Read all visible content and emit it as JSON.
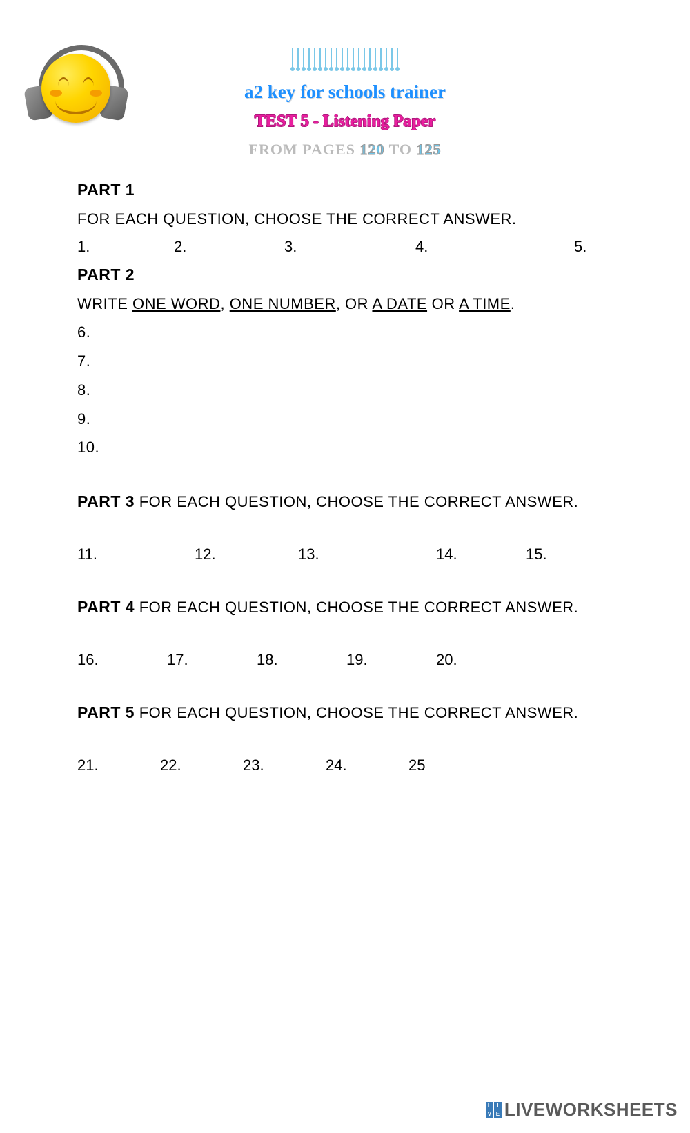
{
  "header": {
    "title": "A2 Key for schools trainer",
    "subtitle": "TEST 5 - Listening Paper",
    "pages_label": "FROM PAGES",
    "p_from": "120",
    "pages_to": "TO",
    "p_to": "125"
  },
  "part1": {
    "label": "PART 1",
    "inst": "FOR EACH QUESTION, CHOOSE THE CORRECT ANSWER.",
    "nums": [
      "1.",
      "2.",
      "3.",
      "4.",
      "5."
    ]
  },
  "part2": {
    "label": "PART 2",
    "inst_a": "WRITE ",
    "u1": "ONE WORD",
    "sep1": ", ",
    "u2": "ONE NUMBER",
    "sep2": ", OR ",
    "u3": "A DATE",
    "sep3": " OR ",
    "u4": "A TIME",
    "end": ".",
    "nums": [
      "6.",
      "7.",
      "8.",
      "9.",
      "10."
    ]
  },
  "part3": {
    "label": "PART 3",
    "inst": " FOR EACH QUESTION, CHOOSE THE CORRECT ANSWER.",
    "nums": [
      "11.",
      "12.",
      "13.",
      "14.",
      "15."
    ]
  },
  "part4": {
    "label": "PART 4",
    "inst": " FOR EACH QUESTION, CHOOSE THE CORRECT ANSWER.",
    "nums": [
      "16.",
      "17.",
      "18.",
      "19.",
      "20."
    ]
  },
  "part5": {
    "label": "PART 5",
    "inst": " FOR EACH QUESTION, CHOOSE THE CORRECT ANSWER.",
    "nums": [
      "21.",
      "22.",
      "23.",
      "24.",
      "25"
    ]
  },
  "footer": {
    "sq": [
      "L",
      "I",
      "V",
      "E"
    ],
    "brand": "LIVEWORKSHEETS"
  }
}
